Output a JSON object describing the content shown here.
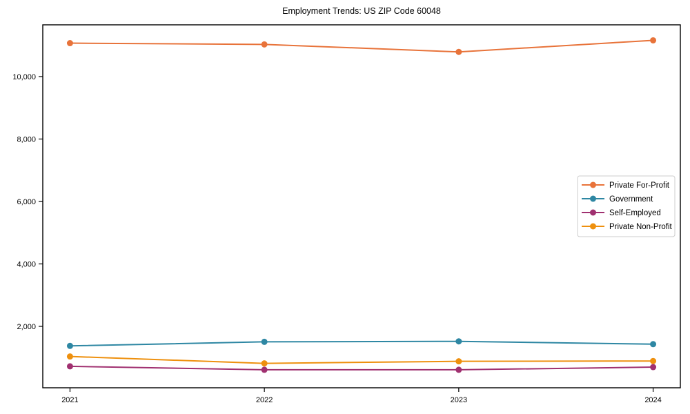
{
  "chart_data": {
    "type": "line",
    "title": "Employment Trends: US ZIP Code 60048",
    "x": [
      2021,
      2022,
      2023,
      2024
    ],
    "x_tick_labels": [
      "2021",
      "2022",
      "2023",
      "2024"
    ],
    "y_ticks": [
      2000,
      4000,
      6000,
      8000,
      10000
    ],
    "y_tick_labels": [
      "2,000",
      "4,000",
      "6,000",
      "8,000",
      "10,000"
    ],
    "xlabel": "",
    "ylabel": "",
    "xlim": [
      2020.86,
      2024.14
    ],
    "ylim": [
      33,
      11657
    ],
    "grid": false,
    "legend_position": "center-right",
    "marker": "circle",
    "series": [
      {
        "name": "Private For-Profit",
        "color": "#e8733a",
        "values": [
          11070,
          11030,
          10790,
          11160
        ]
      },
      {
        "name": "Government",
        "color": "#2e87a3",
        "values": [
          1375,
          1505,
          1520,
          1430
        ]
      },
      {
        "name": "Self-Employed",
        "color": "#a03070",
        "values": [
          720,
          610,
          610,
          695
        ]
      },
      {
        "name": "Private Non-Profit",
        "color": "#ee900e",
        "values": [
          1035,
          815,
          880,
          890
        ]
      }
    ],
    "frame_color": "#000000",
    "tick_label_color": "#000000",
    "legend_border_color": "#cccccc",
    "legend_background": "#ffffff"
  }
}
